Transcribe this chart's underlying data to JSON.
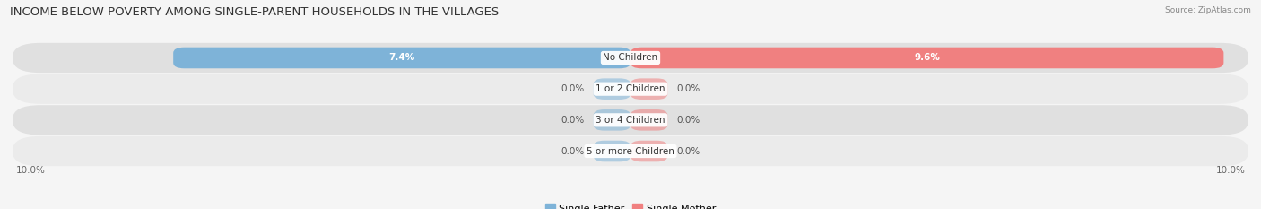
{
  "title": "INCOME BELOW POVERTY AMONG SINGLE-PARENT HOUSEHOLDS IN THE VILLAGES",
  "source": "Source: ZipAtlas.com",
  "categories": [
    "No Children",
    "1 or 2 Children",
    "3 or 4 Children",
    "5 or more Children"
  ],
  "single_father": [
    7.4,
    0.0,
    0.0,
    0.0
  ],
  "single_mother": [
    9.6,
    0.0,
    0.0,
    0.0
  ],
  "color_father": "#7EB3D8",
  "color_mother": "#F08080",
  "bar_height": 0.68,
  "xlim_left": -10.0,
  "xlim_right": 10.0,
  "bg_color": "#f5f5f5",
  "row_bg_dark": "#e0e0e0",
  "row_bg_light": "#ebebeb",
  "title_fontsize": 9.5,
  "label_fontsize": 7.5,
  "tick_fontsize": 7.5,
  "legend_fontsize": 8,
  "zero_bar_width": 0.6
}
